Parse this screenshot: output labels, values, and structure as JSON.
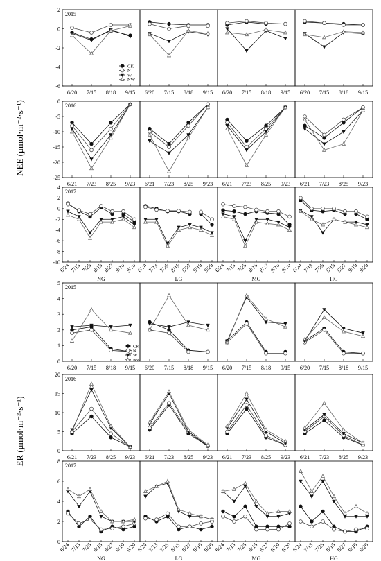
{
  "y_labels": {
    "nee": "NEE (μmol·m⁻²·s⁻¹)",
    "er": "ER (μmol·m⁻²·s⁻¹)"
  },
  "chart_data": {
    "type": "line",
    "legend_position": "top-right of first panel",
    "legend": [
      "CK",
      "N",
      "W",
      "NW"
    ],
    "sites": [
      "NG",
      "LG",
      "MG",
      "HG"
    ],
    "colors": {
      "CK": "#111111",
      "N": "#444444",
      "W": "#111111",
      "NW": "#666666"
    },
    "markers": {
      "CK": "filled-circle",
      "N": "open-circle",
      "W": "filled-triangle-down",
      "NW": "open-triangle-up"
    },
    "panels": [
      {
        "variable": "NEE",
        "year": "2015",
        "x": [
          "6/20",
          "7/15",
          "8/18",
          "9/15"
        ],
        "y_ticks": [
          2,
          0,
          -2,
          -4,
          -6
        ],
        "ylim": [
          -6,
          2
        ],
        "series": {
          "NG": {
            "CK": [
              -0.4,
              -1.1,
              -0.2,
              -0.7
            ],
            "N": [
              0.1,
              -0.4,
              0.4,
              0.4
            ],
            "W": [
              -0.5,
              -1.2,
              -0.1,
              -0.8
            ],
            "NW": [
              -0.7,
              -2.6,
              -0.2,
              0.3
            ]
          },
          "LG": {
            "CK": [
              0.7,
              0.5,
              0.4,
              0.4
            ],
            "N": [
              0.5,
              0.0,
              0.3,
              0.3
            ],
            "W": [
              -0.5,
              -1.3,
              -0.3,
              -0.6
            ],
            "NW": [
              -0.6,
              -2.8,
              -0.2,
              -0.5
            ]
          },
          "MG": {
            "CK": [
              0.4,
              0.7,
              0.5,
              0.5
            ],
            "N": [
              0.6,
              0.8,
              0.6,
              0.5
            ],
            "W": [
              0.0,
              -2.3,
              -0.2,
              -1.0
            ],
            "NW": [
              -0.4,
              -0.6,
              -0.1,
              -0.4
            ]
          },
          "HG": {
            "CK": [
              0.7,
              0.6,
              0.5,
              0.4
            ],
            "N": [
              0.8,
              0.6,
              0.4,
              0.4
            ],
            "W": [
              -0.5,
              -1.9,
              -0.4,
              -0.5
            ],
            "NW": [
              -0.6,
              -0.9,
              -0.3,
              -0.4
            ]
          }
        }
      },
      {
        "variable": "NEE",
        "year": "2016",
        "x": [
          "6/21",
          "7/23",
          "8/25",
          "9/23"
        ],
        "y_ticks": [
          0,
          -5,
          -10,
          -15,
          -20,
          -25
        ],
        "ylim": [
          -25,
          0
        ],
        "series": {
          "NG": {
            "CK": [
              -7,
              -14,
              -7,
              -1
            ],
            "N": [
              -8,
              -16,
              -9,
              -1
            ],
            "W": [
              -9,
              -19,
              -11,
              -1
            ],
            "NW": [
              -10,
              -22,
              -12,
              -1
            ]
          },
          "LG": {
            "CK": [
              -9,
              -14,
              -7,
              -1
            ],
            "N": [
              -10,
              -15,
              -8,
              -1
            ],
            "W": [
              -13,
              -17,
              -11,
              -2
            ],
            "NW": [
              -11,
              -23,
              -12,
              -2
            ]
          },
          "MG": {
            "CK": [
              -6,
              -13,
              -8,
              -2
            ],
            "N": [
              -7,
              -15,
              -9,
              -2
            ],
            "W": [
              -8,
              -16,
              -10,
              -2
            ],
            "NW": [
              -9,
              -21,
              -11,
              -2
            ]
          },
          "HG": {
            "CK": [
              -8,
              -12,
              -7,
              -2
            ],
            "N": [
              -5,
              -11,
              -6,
              -2
            ],
            "W": [
              -9,
              -14,
              -10,
              -3
            ],
            "NW": [
              -6,
              -16,
              -14,
              -3
            ]
          }
        }
      },
      {
        "variable": "NEE",
        "year": "2017",
        "x": [
          "6/24",
          "7/13",
          "7/25",
          "8/15",
          "8/27",
          "9/10",
          "9/20"
        ],
        "y_ticks": [
          4,
          2,
          0,
          -2,
          -4,
          -6,
          -8,
          -10
        ],
        "ylim": [
          -10,
          4
        ],
        "series": {
          "NG": {
            "CK": [
              1.0,
              -0.5,
              -1.5,
              0.2,
              -1.0,
              -1.0,
              -2.5
            ],
            "N": [
              0.8,
              -0.3,
              -1.0,
              0.5,
              -0.5,
              -0.5,
              -2.0
            ],
            "W": [
              -0.5,
              -1.5,
              -4.5,
              -2.0,
              -2.0,
              -1.5,
              -3.0
            ],
            "NW": [
              -1.2,
              -2.0,
              -5.5,
              -2.5,
              -2.5,
              -2.0,
              -3.5
            ]
          },
          "LG": {
            "CK": [
              0.5,
              0.0,
              -0.5,
              -0.5,
              -1.0,
              -1.0,
              -3.0
            ],
            "N": [
              0.3,
              -0.2,
              -0.4,
              -0.4,
              -0.6,
              -0.6,
              -2.0
            ],
            "W": [
              -2.0,
              -2.0,
              -6.5,
              -3.5,
              -3.0,
              -3.5,
              -4.5
            ],
            "NW": [
              -2.5,
              -2.5,
              -7.0,
              -4.0,
              -3.5,
              -4.0,
              -5.0
            ]
          },
          "MG": {
            "CK": [
              -0.3,
              -0.5,
              -1.0,
              -0.5,
              -0.8,
              -1.0,
              -3.0
            ],
            "N": [
              0.8,
              0.5,
              0.3,
              -0.2,
              -0.5,
              -0.5,
              -1.5
            ],
            "W": [
              -1.0,
              -1.5,
              -6.0,
              -2.0,
              -2.0,
              -2.5,
              -3.5
            ],
            "NW": [
              -1.5,
              -2.0,
              -7.0,
              -2.5,
              -2.8,
              -3.0,
              -4.0
            ]
          },
          "HG": {
            "CK": [
              1.5,
              -0.3,
              -0.5,
              -0.3,
              -1.0,
              -1.0,
              -2.0
            ],
            "N": [
              2.0,
              0.0,
              0.0,
              0.0,
              -0.5,
              -0.5,
              -1.5
            ],
            "W": [
              -0.3,
              -1.5,
              -4.5,
              -2.0,
              -2.5,
              -2.5,
              -3.0
            ],
            "NW": [
              -0.5,
              -2.0,
              -3.0,
              -2.0,
              -2.5,
              -3.0,
              -3.5
            ]
          }
        }
      },
      {
        "variable": "ER",
        "year": "2015",
        "x": [
          "6/20",
          "7/15",
          "8/18",
          "9/15"
        ],
        "y_ticks": [
          0,
          1,
          2,
          3,
          4,
          5
        ],
        "ylim": [
          0,
          5
        ],
        "series": {
          "NG": {
            "CK": [
              2.0,
              2.2,
              0.8,
              0.6
            ],
            "N": [
              1.8,
              2.0,
              0.7,
              0.6
            ],
            "W": [
              2.2,
              2.3,
              2.2,
              2.3
            ],
            "NW": [
              1.3,
              3.3,
              2.0,
              1.8
            ]
          },
          "LG": {
            "CK": [
              2.5,
              2.0,
              0.7,
              0.6
            ],
            "N": [
              2.0,
              1.8,
              0.6,
              0.6
            ],
            "W": [
              2.4,
              2.2,
              2.5,
              2.3
            ],
            "NW": [
              2.0,
              4.2,
              2.3,
              2.0
            ]
          },
          "MG": {
            "CK": [
              1.3,
              2.5,
              0.6,
              0.6
            ],
            "N": [
              1.2,
              2.4,
              0.5,
              0.5
            ],
            "W": [
              1.3,
              4.1,
              2.5,
              2.4
            ],
            "NW": [
              1.2,
              4.2,
              2.7,
              2.2
            ]
          },
          "HG": {
            "CK": [
              1.3,
              2.1,
              0.6,
              0.5
            ],
            "N": [
              1.2,
              2.0,
              0.5,
              0.5
            ],
            "W": [
              1.3,
              3.3,
              2.1,
              1.8
            ],
            "NW": [
              1.4,
              2.8,
              1.9,
              1.6
            ]
          }
        }
      },
      {
        "variable": "ER",
        "year": "2016",
        "x": [
          "6/21",
          "7/23",
          "8/25",
          "9/23"
        ],
        "y_ticks": [
          0,
          5,
          10,
          15,
          20
        ],
        "ylim": [
          0,
          20
        ],
        "series": {
          "NG": {
            "CK": [
              4.5,
              9.0,
              3.5,
              1.0
            ],
            "N": [
              5.0,
              11.0,
              4.5,
              1.0
            ],
            "W": [
              5.5,
              16.0,
              6.0,
              1.0
            ],
            "NW": [
              5.0,
              17.5,
              6.5,
              1.0
            ]
          },
          "LG": {
            "CK": [
              5.5,
              12.0,
              4.5,
              1.2
            ],
            "N": [
              6.0,
              12.5,
              5.0,
              1.2
            ],
            "W": [
              7.0,
              15.0,
              5.0,
              1.3
            ],
            "NW": [
              7.5,
              15.5,
              5.5,
              1.5
            ]
          },
          "MG": {
            "CK": [
              4.5,
              11.0,
              3.5,
              1.5
            ],
            "N": [
              5.0,
              12.0,
              4.0,
              1.5
            ],
            "W": [
              6.0,
              13.5,
              5.0,
              2.0
            ],
            "NW": [
              6.5,
              15.0,
              5.5,
              2.5
            ]
          },
          "HG": {
            "CK": [
              4.5,
              8.0,
              3.5,
              1.5
            ],
            "N": [
              5.0,
              9.0,
              4.0,
              1.5
            ],
            "W": [
              5.5,
              9.5,
              4.5,
              2.0
            ],
            "NW": [
              6.0,
              12.5,
              5.5,
              2.0
            ]
          }
        }
      },
      {
        "variable": "ER",
        "year": "2017",
        "x": [
          "6/24",
          "7/13",
          "7/25",
          "8/15",
          "8/27",
          "9/10",
          "9/20"
        ],
        "y_ticks": [
          0,
          2,
          4,
          6,
          8
        ],
        "ylim": [
          0,
          8
        ],
        "series": {
          "NG": {
            "CK": [
              3.0,
              1.5,
              2.5,
              1.0,
              1.5,
              1.2,
              1.5
            ],
            "N": [
              2.8,
              1.8,
              2.2,
              1.2,
              1.3,
              1.5,
              1.8
            ],
            "W": [
              5.0,
              3.5,
              5.0,
              2.5,
              2.0,
              2.0,
              2.0
            ],
            "NW": [
              5.2,
              4.5,
              5.2,
              3.0,
              2.0,
              2.0,
              2.2
            ]
          },
          "LG": {
            "CK": [
              2.5,
              2.0,
              2.5,
              1.2,
              1.5,
              1.2,
              1.5
            ],
            "N": [
              2.3,
              2.2,
              2.8,
              1.5,
              1.5,
              1.8,
              2.0
            ],
            "W": [
              4.5,
              5.5,
              5.8,
              3.0,
              2.5,
              2.5,
              2.2
            ],
            "NW": [
              5.0,
              5.5,
              6.0,
              3.2,
              2.8,
              2.5,
              2.2
            ]
          },
          "MG": {
            "CK": [
              3.0,
              2.5,
              3.5,
              1.5,
              1.5,
              1.5,
              1.5
            ],
            "N": [
              2.5,
              2.0,
              2.5,
              1.2,
              1.2,
              1.2,
              1.8
            ],
            "W": [
              5.0,
              4.0,
              5.5,
              3.5,
              2.5,
              2.5,
              2.8
            ],
            "NW": [
              5.0,
              5.2,
              5.8,
              4.0,
              2.8,
              3.0,
              3.0
            ]
          },
          "HG": {
            "CK": [
              3.5,
              2.0,
              3.0,
              1.5,
              1.0,
              1.0,
              1.5
            ],
            "N": [
              2.0,
              1.5,
              2.0,
              1.2,
              1.0,
              1.2,
              1.3
            ],
            "W": [
              6.0,
              4.5,
              6.0,
              4.0,
              2.5,
              2.5,
              2.5
            ],
            "NW": [
              7.0,
              5.0,
              6.5,
              4.5,
              2.8,
              3.5,
              2.8
            ]
          }
        }
      }
    ]
  }
}
